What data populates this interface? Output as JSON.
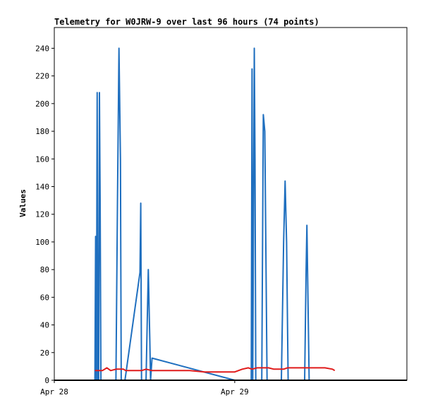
{
  "chart_data": {
    "type": "line",
    "title": "Telemetry for W0JRW-9 over last 96 hours (74 points)",
    "xlabel": "",
    "ylabel": "Values",
    "ylim": [
      0,
      255
    ],
    "yticks": [
      0,
      20,
      40,
      60,
      80,
      100,
      120,
      140,
      160,
      180,
      200,
      220,
      240
    ],
    "xticks": [
      {
        "label": "Apr 28",
        "t": 0
      },
      {
        "label": "Apr 29",
        "t": 24
      }
    ],
    "xlim_hours": [
      0,
      46.9
    ],
    "grid": false,
    "legend": "none",
    "background": "#ffffff",
    "series": [
      {
        "color": "#1f6fbf",
        "points": [
          [
            5.4,
            0
          ],
          [
            5.5,
            104
          ],
          [
            5.6,
            0
          ],
          [
            5.7,
            208
          ],
          [
            5.8,
            0
          ],
          [
            5.9,
            0
          ],
          [
            6.0,
            208
          ],
          [
            6.1,
            130
          ],
          [
            6.2,
            0
          ],
          [
            8.2,
            0
          ],
          [
            8.4,
            130
          ],
          [
            8.6,
            240
          ],
          [
            8.8,
            160
          ],
          [
            8.9,
            0
          ],
          [
            9.4,
            0
          ],
          [
            11.4,
            78
          ],
          [
            11.5,
            128
          ],
          [
            11.6,
            0
          ],
          [
            12.2,
            0
          ],
          [
            12.5,
            80
          ],
          [
            12.7,
            30
          ],
          [
            12.8,
            0
          ],
          [
            13.0,
            16
          ],
          [
            24.0,
            0
          ],
          [
            26.2,
            0
          ],
          [
            26.3,
            225
          ],
          [
            26.4,
            0
          ],
          [
            26.6,
            240
          ],
          [
            26.7,
            160
          ],
          [
            26.8,
            0
          ],
          [
            27.6,
            0
          ],
          [
            27.8,
            192
          ],
          [
            28.0,
            180
          ],
          [
            28.3,
            0
          ],
          [
            30.2,
            0
          ],
          [
            30.5,
            100
          ],
          [
            30.7,
            144
          ],
          [
            30.9,
            100
          ],
          [
            31.1,
            0
          ],
          [
            33.3,
            0
          ],
          [
            33.5,
            80
          ],
          [
            33.6,
            112
          ],
          [
            33.9,
            0
          ]
        ]
      },
      {
        "color": "#e01b1b",
        "points": [
          [
            5.4,
            7
          ],
          [
            6.4,
            7
          ],
          [
            7.0,
            9
          ],
          [
            7.5,
            7
          ],
          [
            8.2,
            8
          ],
          [
            9.2,
            8
          ],
          [
            9.5,
            7
          ],
          [
            11.6,
            7
          ],
          [
            12.2,
            8
          ],
          [
            13.0,
            7
          ],
          [
            18.0,
            7
          ],
          [
            20.0,
            6
          ],
          [
            24.0,
            6
          ],
          [
            25.0,
            8
          ],
          [
            25.8,
            9
          ],
          [
            26.3,
            8
          ],
          [
            27.0,
            9
          ],
          [
            28.5,
            9
          ],
          [
            29.2,
            8
          ],
          [
            30.5,
            8
          ],
          [
            31.0,
            9
          ],
          [
            35.0,
            9
          ],
          [
            36.0,
            9
          ],
          [
            37.0,
            8
          ],
          [
            37.3,
            7
          ]
        ]
      },
      {
        "color": "#000000",
        "points": [
          [
            0,
            0
          ],
          [
            46.9,
            0
          ]
        ]
      }
    ]
  }
}
